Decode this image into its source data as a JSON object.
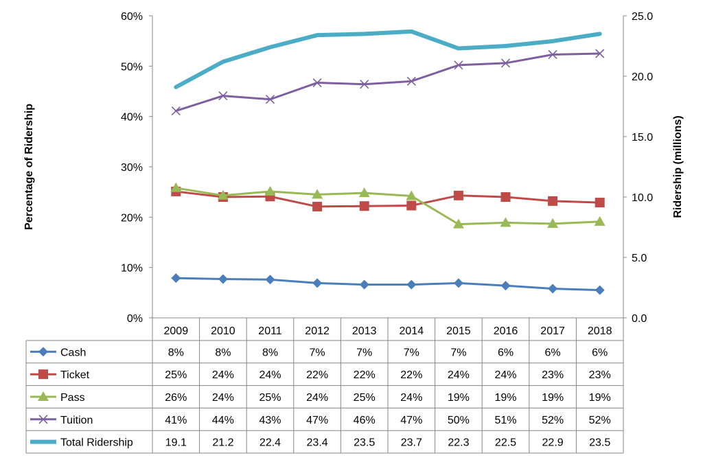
{
  "chart_data": {
    "type": "line",
    "categories": [
      "2009",
      "2010",
      "2011",
      "2012",
      "2013",
      "2014",
      "2015",
      "2016",
      "2017",
      "2018"
    ],
    "left_axis": {
      "label": "Percentage of Ridership",
      "min": 0,
      "max": 60,
      "step": 10,
      "tick_labels": [
        "0%",
        "10%",
        "20%",
        "30%",
        "40%",
        "50%",
        "60%"
      ]
    },
    "right_axis": {
      "label": "Ridership (millions)",
      "min": 0,
      "max": 25,
      "step": 5,
      "tick_labels": [
        "0.0",
        "5.0",
        "10.0",
        "15.0",
        "20.0",
        "25.0"
      ]
    },
    "series": [
      {
        "name": "Cash",
        "axis": "left",
        "marker": "diamond",
        "color": "#4a7ebb",
        "values": [
          7.9,
          7.7,
          7.6,
          6.9,
          6.6,
          6.6,
          6.9,
          6.4,
          5.8,
          5.5
        ],
        "labels": [
          "8%",
          "8%",
          "8%",
          "7%",
          "7%",
          "7%",
          "7%",
          "6%",
          "6%",
          "6%"
        ]
      },
      {
        "name": "Ticket",
        "axis": "left",
        "marker": "square",
        "color": "#be4b48",
        "values": [
          25.1,
          24.0,
          24.1,
          22.1,
          22.2,
          22.3,
          24.3,
          24.0,
          23.2,
          22.9
        ],
        "labels": [
          "25%",
          "24%",
          "24%",
          "22%",
          "22%",
          "22%",
          "24%",
          "24%",
          "23%",
          "23%"
        ]
      },
      {
        "name": "Pass",
        "axis": "left",
        "marker": "triangle",
        "color": "#98b954",
        "values": [
          25.8,
          24.3,
          25.1,
          24.5,
          24.8,
          24.2,
          18.6,
          18.9,
          18.7,
          19.1
        ],
        "labels": [
          "26%",
          "24%",
          "25%",
          "24%",
          "25%",
          "24%",
          "19%",
          "19%",
          "19%",
          "19%"
        ]
      },
      {
        "name": "Tuition",
        "axis": "left",
        "marker": "x",
        "color": "#7d5fa0",
        "values": [
          41.1,
          44.1,
          43.4,
          46.7,
          46.4,
          47.0,
          50.2,
          50.6,
          52.3,
          52.5
        ],
        "labels": [
          "41%",
          "44%",
          "43%",
          "47%",
          "46%",
          "47%",
          "50%",
          "51%",
          "52%",
          "52%"
        ]
      },
      {
        "name": "Total Ridership",
        "axis": "right",
        "marker": "none",
        "color": "#4bacc6",
        "values": [
          19.1,
          21.2,
          22.4,
          23.4,
          23.5,
          23.7,
          22.3,
          22.5,
          22.9,
          23.5
        ],
        "labels": [
          "19.1",
          "21.2",
          "22.4",
          "23.4",
          "23.5",
          "23.7",
          "22.3",
          "22.5",
          "22.9",
          "23.5"
        ]
      }
    ]
  }
}
